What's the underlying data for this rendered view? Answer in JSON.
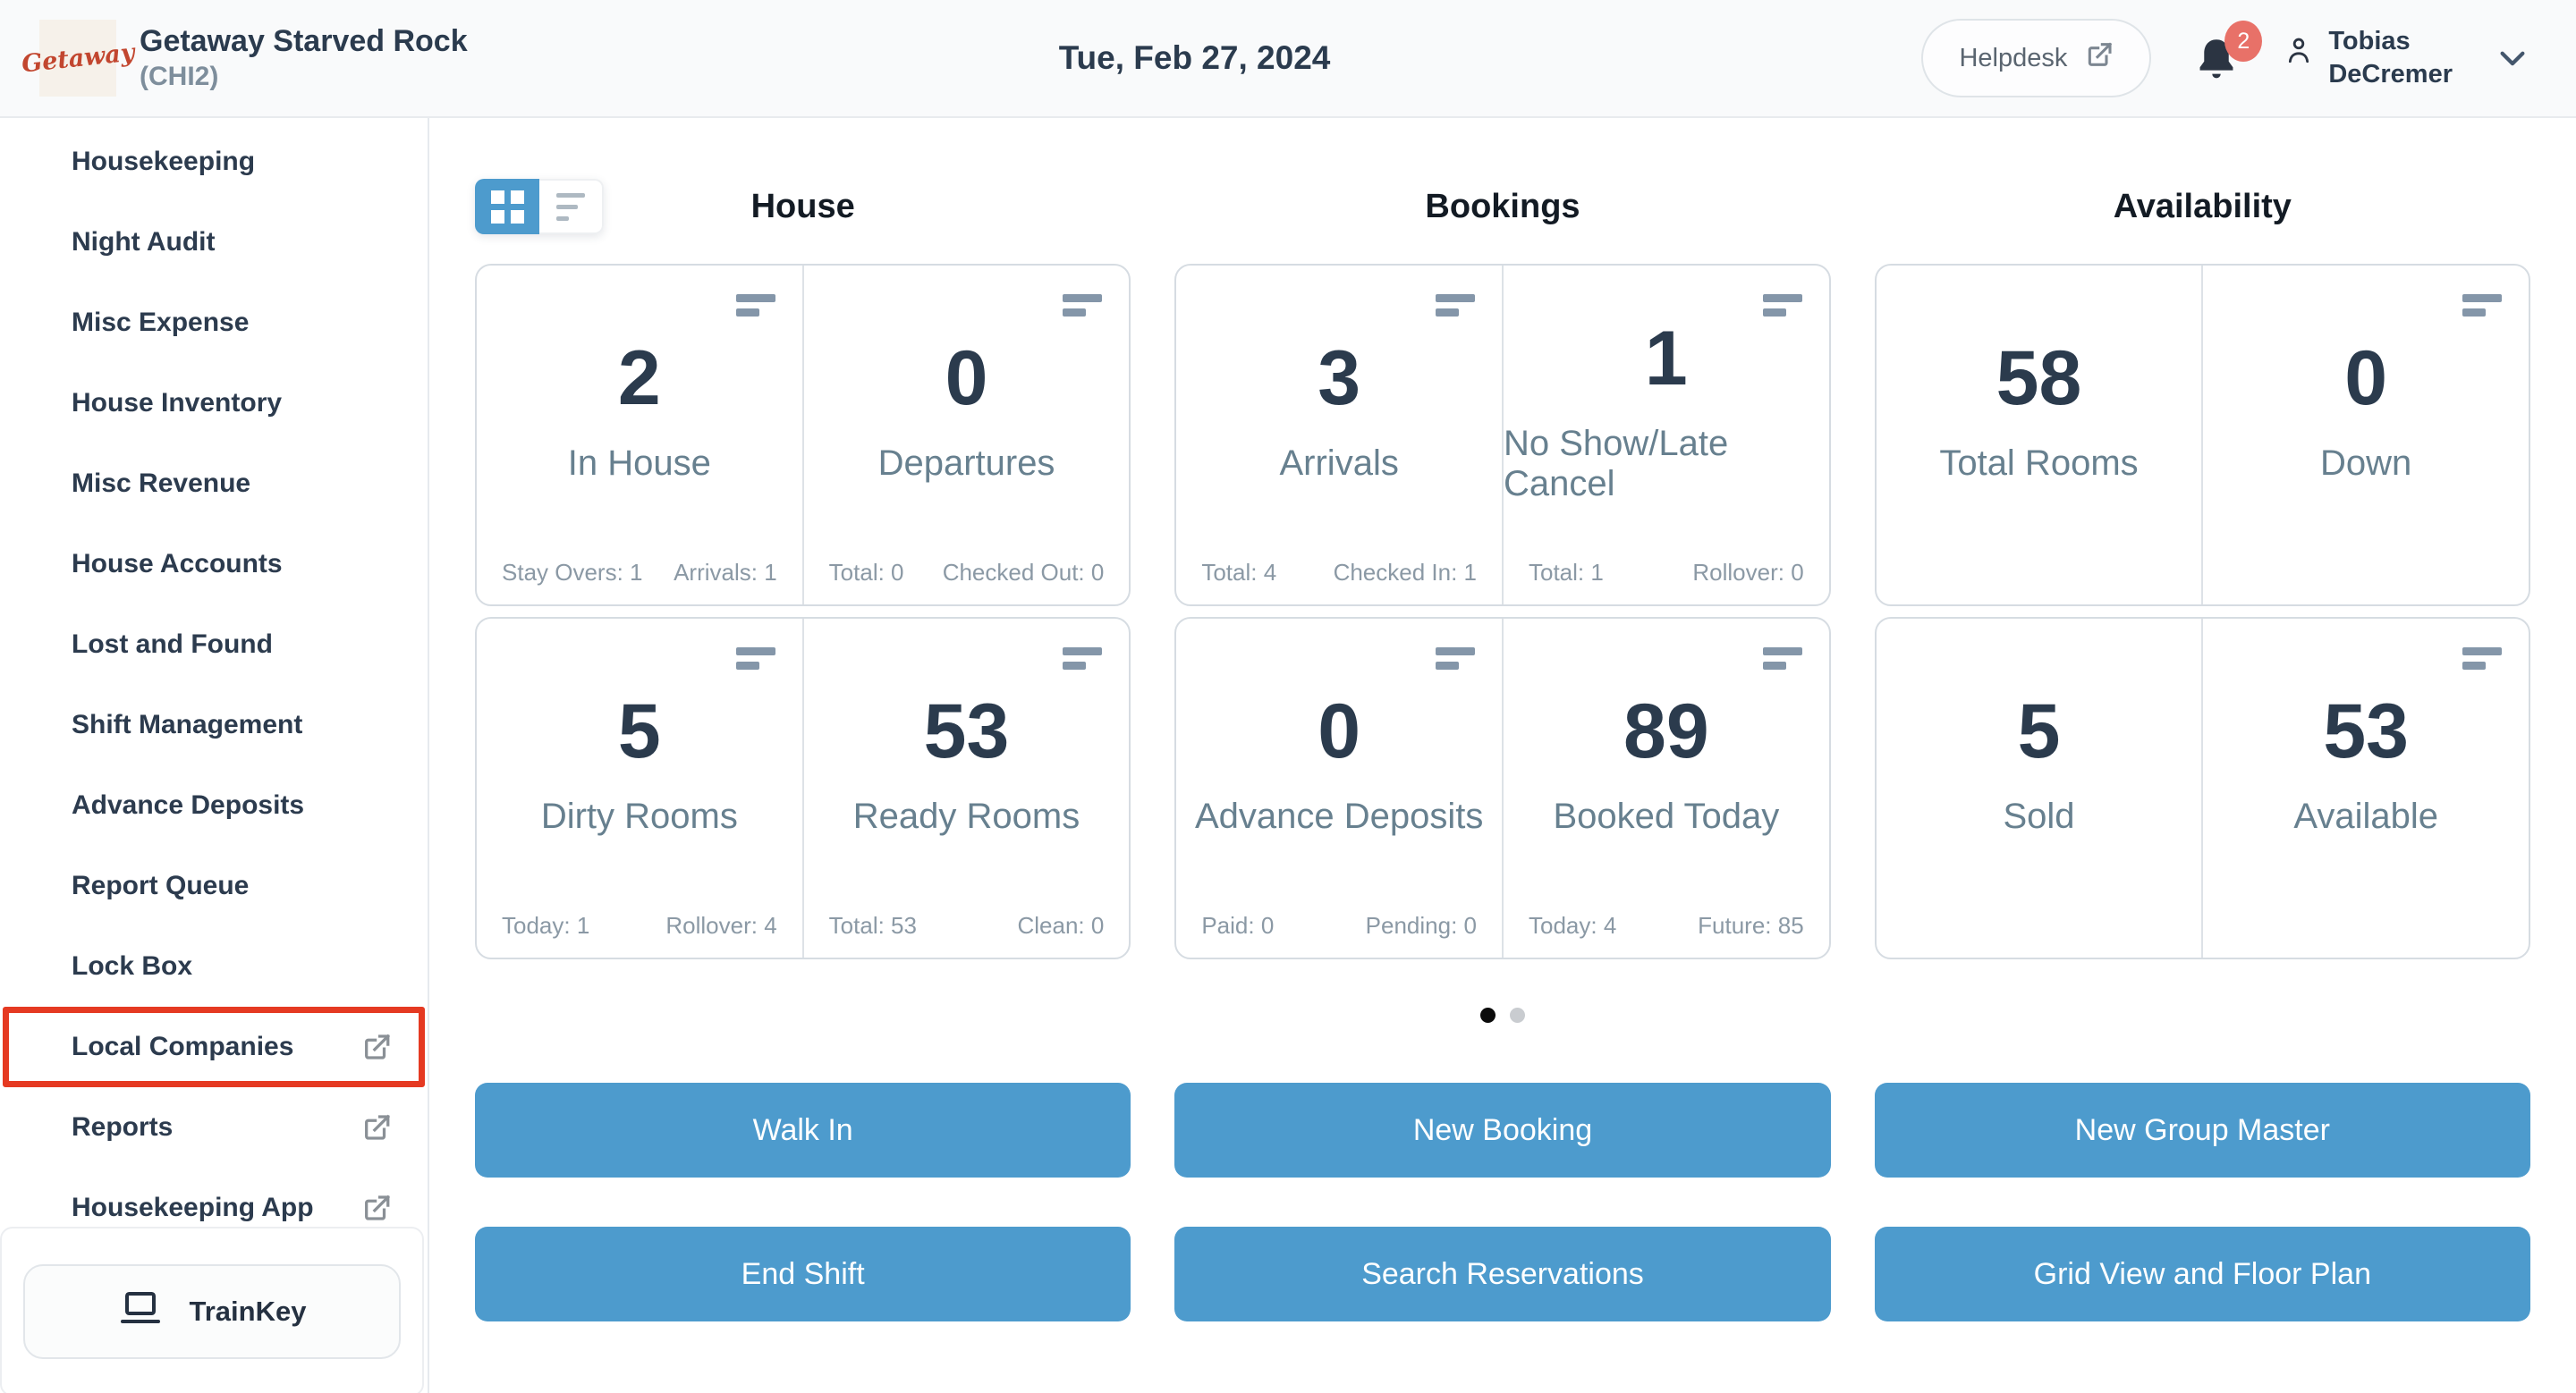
{
  "header": {
    "logo_text": "Getaway",
    "property_name": "Getaway Starved Rock",
    "property_code": "(CHI2)",
    "date": "Tue, Feb 27, 2024",
    "helpdesk_label": "Helpdesk",
    "notifications_badge": "2",
    "user_first_name": "Tobias",
    "user_last_name": "DeCremer"
  },
  "sidebar": {
    "items": [
      {
        "label": "Housekeeping",
        "external": false,
        "highlighted": false
      },
      {
        "label": "Night Audit",
        "external": false,
        "highlighted": false
      },
      {
        "label": "Misc Expense",
        "external": false,
        "highlighted": false
      },
      {
        "label": "House Inventory",
        "external": false,
        "highlighted": false
      },
      {
        "label": "Misc Revenue",
        "external": false,
        "highlighted": false
      },
      {
        "label": "House Accounts",
        "external": false,
        "highlighted": false
      },
      {
        "label": "Lost and Found",
        "external": false,
        "highlighted": false
      },
      {
        "label": "Shift Management",
        "external": false,
        "highlighted": false
      },
      {
        "label": "Advance Deposits",
        "external": false,
        "highlighted": false
      },
      {
        "label": "Report Queue",
        "external": false,
        "highlighted": false
      },
      {
        "label": "Lock Box",
        "external": false,
        "highlighted": false
      },
      {
        "label": "Local Companies",
        "external": true,
        "highlighted": true
      },
      {
        "label": "Reports",
        "external": true,
        "highlighted": false
      },
      {
        "label": "Housekeeping App",
        "external": true,
        "highlighted": false
      }
    ],
    "trainkey_label": "TrainKey"
  },
  "view_toggle": {
    "active": "grid",
    "options": [
      "grid",
      "list"
    ]
  },
  "dashboard": {
    "sections": [
      {
        "title": "House",
        "rows": [
          [
            {
              "value": "2",
              "label": "In House",
              "menu_icon": true,
              "stats": [
                {
                  "label": "Stay Overs",
                  "value": "1"
                },
                {
                  "label": "Arrivals",
                  "value": "1"
                }
              ]
            },
            {
              "value": "0",
              "label": "Departures",
              "menu_icon": true,
              "stats": [
                {
                  "label": "Total",
                  "value": "0"
                },
                {
                  "label": "Checked Out",
                  "value": "0"
                }
              ]
            }
          ],
          [
            {
              "value": "5",
              "label": "Dirty Rooms",
              "menu_icon": true,
              "stats": [
                {
                  "label": "Today",
                  "value": "1"
                },
                {
                  "label": "Rollover",
                  "value": "4"
                }
              ]
            },
            {
              "value": "53",
              "label": "Ready Rooms",
              "menu_icon": true,
              "stats": [
                {
                  "label": "Total",
                  "value": "53"
                },
                {
                  "label": "Clean",
                  "value": "0"
                }
              ]
            }
          ]
        ]
      },
      {
        "title": "Bookings",
        "rows": [
          [
            {
              "value": "3",
              "label": "Arrivals",
              "menu_icon": true,
              "stats": [
                {
                  "label": "Total",
                  "value": "4"
                },
                {
                  "label": "Checked In",
                  "value": "1"
                }
              ]
            },
            {
              "value": "1",
              "label": "No Show/Late Cancel",
              "menu_icon": true,
              "stats": [
                {
                  "label": "Total",
                  "value": "1"
                },
                {
                  "label": "Rollover",
                  "value": "0"
                }
              ]
            }
          ],
          [
            {
              "value": "0",
              "label": "Advance Deposits",
              "menu_icon": true,
              "stats": [
                {
                  "label": "Paid",
                  "value": "0"
                },
                {
                  "label": "Pending",
                  "value": "0"
                }
              ]
            },
            {
              "value": "89",
              "label": "Booked Today",
              "menu_icon": true,
              "stats": [
                {
                  "label": "Today",
                  "value": "4"
                },
                {
                  "label": "Future",
                  "value": "85"
                }
              ]
            }
          ]
        ]
      },
      {
        "title": "Availability",
        "rows": [
          [
            {
              "value": "58",
              "label": "Total Rooms",
              "menu_icon": false,
              "stats": []
            },
            {
              "value": "0",
              "label": "Down",
              "menu_icon": true,
              "stats": []
            }
          ],
          [
            {
              "value": "5",
              "label": "Sold",
              "menu_icon": false,
              "stats": []
            },
            {
              "value": "53",
              "label": "Available",
              "menu_icon": true,
              "stats": []
            }
          ]
        ]
      }
    ],
    "pagination": {
      "dots": 2,
      "active_index": 0
    }
  },
  "action_buttons": {
    "rows": [
      [
        "Walk In",
        "New Booking",
        "New Group Master"
      ],
      [
        "End Shift",
        "Search Reservations",
        "Grid View and Floor Plan"
      ]
    ]
  },
  "icons": [
    "grid-view-icon",
    "list-view-icon",
    "external-link-icon",
    "bell-icon",
    "person-icon",
    "chevron-down-icon",
    "laptop-icon",
    "card-menu-icon"
  ],
  "colors": {
    "accent_blue": "#4d9bcd",
    "badge_red": "#e87168",
    "highlight_red": "#e53a22",
    "navy_text": "#2b3b4e"
  }
}
